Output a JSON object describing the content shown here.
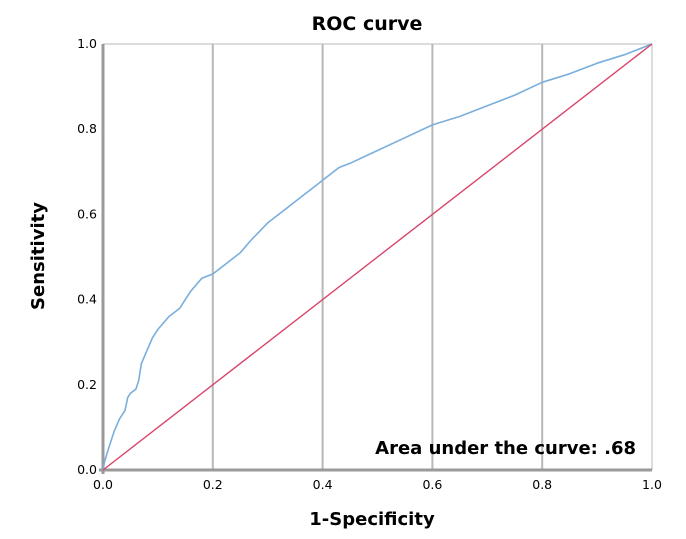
{
  "chart_data": {
    "type": "line",
    "title": "ROC curve",
    "xlabel": "1-Specificity",
    "ylabel": "Sensitivity",
    "xlim": [
      0,
      1
    ],
    "ylim": [
      0,
      1
    ],
    "xticks": [
      "0.0",
      "0.2",
      "0.4",
      "0.6",
      "0.8",
      "1.0"
    ],
    "yticks": [
      "0.0",
      "0.2",
      "0.4",
      "0.6",
      "0.8",
      "1.0"
    ],
    "grid": "vertical",
    "annotation": "Area under the curve: .68",
    "series": [
      {
        "role": "roc",
        "color": "#7aaedc",
        "x": [
          0.0,
          0.003,
          0.01,
          0.02,
          0.03,
          0.04,
          0.045,
          0.05,
          0.06,
          0.065,
          0.07,
          0.08,
          0.09,
          0.1,
          0.12,
          0.14,
          0.15,
          0.16,
          0.18,
          0.2,
          0.22,
          0.25,
          0.27,
          0.3,
          0.33,
          0.36,
          0.39,
          0.4,
          0.43,
          0.45,
          0.5,
          0.55,
          0.6,
          0.65,
          0.7,
          0.75,
          0.8,
          0.85,
          0.9,
          0.95,
          1.0
        ],
        "y": [
          0.0,
          0.02,
          0.05,
          0.09,
          0.12,
          0.14,
          0.17,
          0.18,
          0.19,
          0.21,
          0.25,
          0.28,
          0.31,
          0.33,
          0.36,
          0.38,
          0.4,
          0.42,
          0.45,
          0.46,
          0.48,
          0.51,
          0.54,
          0.58,
          0.61,
          0.64,
          0.67,
          0.68,
          0.71,
          0.72,
          0.75,
          0.78,
          0.81,
          0.83,
          0.855,
          0.88,
          0.91,
          0.93,
          0.955,
          0.975,
          1.0
        ]
      },
      {
        "role": "reference",
        "color": "#d8456a",
        "x": [
          0,
          1
        ],
        "y": [
          0,
          1
        ]
      }
    ]
  },
  "colors": {
    "grid": "#b8b8b8",
    "axis": "#9a9a9a"
  }
}
